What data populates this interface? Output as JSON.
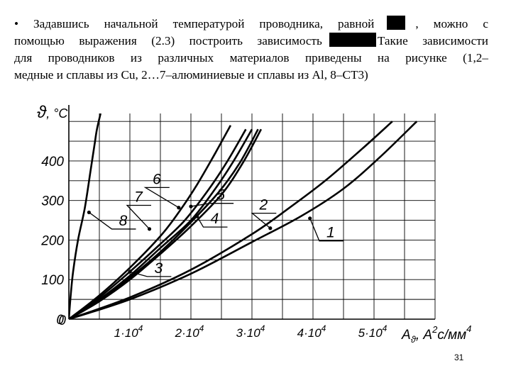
{
  "text": {
    "line1_a": "• Задавшись начальной температурой проводника, равной",
    "line1_b": ", можно с",
    "line2_a": "помощью выражения (2.3) построить зависимость",
    "line2_b": "Такие зависимости",
    "line3": "для проводников из различных материалов приведены на рисунке (1,2–",
    "line4": "медные и сплавы из Cu, 2…7–алюминиевые и сплавы из Al, 8–СТ3)"
  },
  "page_number": "31",
  "colors": {
    "ink": "#000000",
    "grid": "#000000",
    "background": "#ffffff"
  },
  "chart_data": {
    "type": "line",
    "ylabel": "ϑ, °C",
    "xlabel": "A_ϑ, A²c/мм⁴",
    "x_axis_label": {
      "main": "A",
      "sub": "ϑ",
      "rest": ", A",
      "sup": "2",
      "tail": "с/мм",
      "sup2": "4"
    },
    "y_axis_label": {
      "main": "ϑ",
      "rest": ", °C"
    },
    "xlim": [
      0,
      60000
    ],
    "ylim": [
      0,
      520
    ],
    "x_ticks": [
      0,
      10000,
      20000,
      30000,
      40000,
      50000
    ],
    "x_tick_labels": [
      {
        "base": "1·10",
        "exp": "4"
      },
      {
        "base": "2·10",
        "exp": "4"
      },
      {
        "base": "3·10",
        "exp": "4"
      },
      {
        "base": "4·10",
        "exp": "4"
      },
      {
        "base": "5·10",
        "exp": "4"
      }
    ],
    "y_ticks": [
      0,
      100,
      200,
      300,
      400
    ],
    "y_tick_labels": [
      "0",
      "100",
      "200",
      "300",
      "400"
    ],
    "origin_label": "0",
    "grid": true,
    "series": [
      {
        "name": "8",
        "x": [
          0,
          300,
          700,
          1500,
          2600,
          3600,
          4200,
          4600,
          5200
        ],
        "y": [
          0,
          60,
          120,
          200,
          280,
          380,
          440,
          480,
          520
        ]
      },
      {
        "name": "6",
        "x": [
          0,
          5000,
          10000,
          15000,
          18000,
          21000,
          24000,
          26500
        ],
        "y": [
          0,
          60,
          130,
          210,
          270,
          340,
          420,
          490
        ]
      },
      {
        "name": "7",
        "x": [
          0,
          5000,
          10000,
          15000,
          19000,
          23000,
          26000,
          29000
        ],
        "y": [
          0,
          55,
          120,
          190,
          250,
          330,
          400,
          480
        ]
      },
      {
        "name": "5",
        "x": [
          0,
          5000,
          10000,
          15000,
          20000,
          24000,
          27000,
          30000
        ],
        "y": [
          0,
          50,
          110,
          180,
          250,
          330,
          400,
          480
        ]
      },
      {
        "name": "4",
        "x": [
          0,
          5000,
          10000,
          15000,
          20000,
          24500,
          28000,
          31000
        ],
        "y": [
          0,
          48,
          105,
          170,
          245,
          320,
          395,
          480
        ]
      },
      {
        "name": "3",
        "x": [
          0,
          5000,
          10000,
          15000,
          20000,
          25000,
          28500,
          31500
        ],
        "y": [
          0,
          45,
          100,
          165,
          235,
          315,
          395,
          480
        ]
      },
      {
        "name": "2",
        "x": [
          0,
          10000,
          20000,
          30000,
          36000,
          42000,
          48000,
          53000
        ],
        "y": [
          0,
          55,
          125,
          215,
          280,
          350,
          430,
          500
        ]
      },
      {
        "name": "1",
        "x": [
          0,
          10000,
          20000,
          30000,
          38000,
          45000,
          51000,
          57000
        ],
        "y": [
          0,
          50,
          115,
          195,
          260,
          330,
          410,
          500
        ]
      }
    ],
    "annotations": [
      {
        "label": "8",
        "at_x": 3300,
        "at_y": 270,
        "text_x": 7500,
        "text_y": 235
      },
      {
        "label": "6",
        "at_x": 18000,
        "at_y": 282,
        "text_x": 13000,
        "text_y": 340
      },
      {
        "label": "7",
        "at_x": 13200,
        "at_y": 228,
        "text_x": 10000,
        "text_y": 295
      },
      {
        "label": "5",
        "at_x": 20000,
        "at_y": 285,
        "text_x": 23500,
        "text_y": 300
      },
      {
        "label": "4",
        "at_x": 21000,
        "at_y": 260,
        "text_x": 22500,
        "text_y": 240
      },
      {
        "label": "3",
        "at_x": 10000,
        "at_y": 120,
        "text_x": 13300,
        "text_y": 115
      },
      {
        "label": "2",
        "at_x": 33000,
        "at_y": 230,
        "text_x": 30500,
        "text_y": 275
      },
      {
        "label": "1",
        "at_x": 39500,
        "at_y": 255,
        "text_x": 41500,
        "text_y": 205
      }
    ]
  }
}
